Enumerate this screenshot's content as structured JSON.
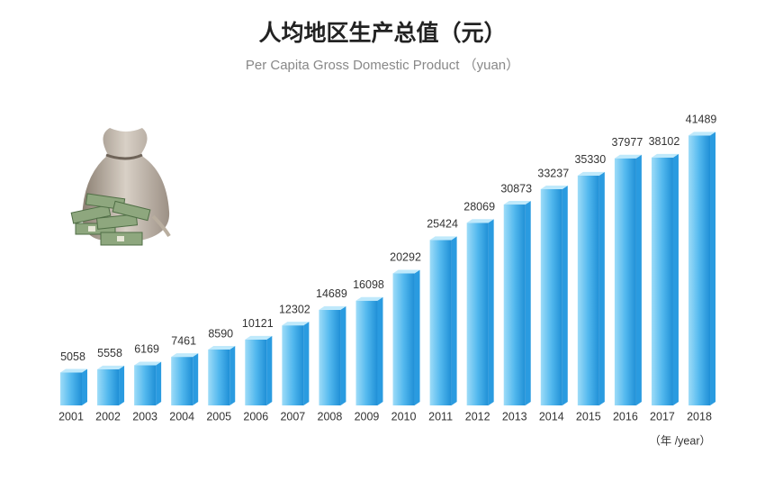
{
  "chart_data": {
    "type": "bar",
    "title": "人均地区生产总值（元）",
    "subtitle": "Per Capita Gross Domestic Product （yuan）",
    "x_label": "（年 /year）",
    "categories": [
      "2001",
      "2002",
      "2003",
      "2004",
      "2005",
      "2006",
      "2007",
      "2008",
      "2009",
      "2010",
      "2011",
      "2012",
      "2013",
      "2014",
      "2015",
      "2016",
      "2017",
      "2018"
    ],
    "values": [
      5058,
      5558,
      6169,
      7461,
      8590,
      10121,
      12302,
      14689,
      16098,
      20292,
      25424,
      28069,
      30873,
      33237,
      35330,
      37977,
      38102,
      41489
    ],
    "color": "#2a9be0",
    "ylim": [
      0,
      45000
    ]
  }
}
